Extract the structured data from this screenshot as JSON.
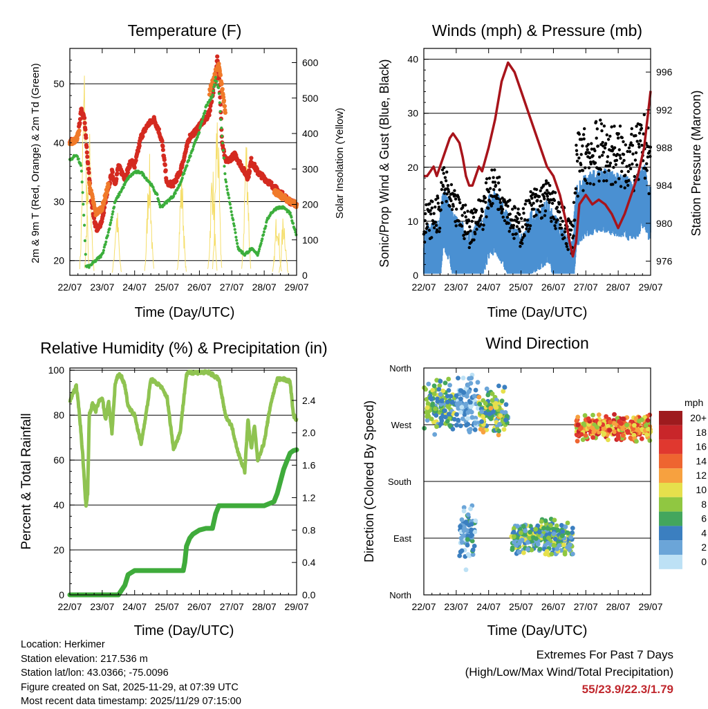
{
  "chart_data": [
    {
      "type": "line",
      "title": "Temperature (F)",
      "xlabel": "Time (Day/UTC)",
      "ylabel": "2m & 9m T (Red, Orange) & 2m Td (Green)",
      "y2label": "Solar Insolation (Yellow)",
      "categories": [
        "22/07",
        "23/07",
        "24/07",
        "25/07",
        "26/07",
        "27/07",
        "28/07",
        "29/07"
      ],
      "ylim": [
        17.5,
        56
      ],
      "yticks": [
        20,
        30,
        40,
        50
      ],
      "y2lim": [
        0,
        640
      ],
      "y2ticks": [
        0,
        100,
        200,
        300,
        400,
        500,
        600
      ],
      "series": [
        {
          "name": "2m T",
          "color": "#d42a20",
          "x": [
            0,
            0.1,
            0.25,
            0.35,
            0.45,
            0.55,
            0.65,
            0.75,
            0.85,
            1.0,
            1.1,
            1.3,
            1.4,
            1.5,
            1.7,
            1.9,
            2.0,
            2.2,
            2.4,
            2.6,
            2.75,
            2.85,
            3.0,
            3.2,
            3.4,
            3.5,
            3.7,
            3.9,
            4.0,
            4.2,
            4.3,
            4.4,
            4.5,
            4.55,
            4.62,
            4.7,
            4.8,
            4.9,
            5.1,
            5.3,
            5.5,
            5.6,
            5.8,
            6.0,
            6.2,
            6.4,
            6.6,
            6.8,
            7.0
          ],
          "y": [
            40.5,
            40,
            41,
            45.5,
            44,
            37,
            31,
            27,
            25,
            27,
            30,
            35,
            33,
            36,
            34,
            37,
            36,
            41,
            43,
            44,
            42,
            40,
            33,
            33,
            35,
            37,
            41,
            42,
            43,
            44,
            45,
            48,
            51,
            55,
            50,
            40,
            37,
            37,
            38,
            36,
            34,
            37,
            35,
            34,
            33,
            32,
            31,
            30,
            29.5
          ]
        },
        {
          "name": "9m T",
          "color": "#f07a2a",
          "x": [
            0,
            0.2,
            0.4,
            0.6,
            0.8,
            1.0,
            1.2,
            1.5,
            2.0,
            2.5,
            3.0,
            3.5,
            4.0,
            4.5,
            4.6,
            5.0,
            5.5,
            6.0,
            6.5,
            7.0
          ],
          "y": [
            40,
            40.5,
            44,
            33,
            28,
            29,
            33,
            34,
            36,
            42,
            32,
            35,
            43,
            52,
            53,
            38,
            35,
            33,
            31,
            29.5
          ]
        },
        {
          "name": "2m Td",
          "color": "#3cae3c",
          "x": [
            0,
            0.2,
            0.35,
            0.45,
            0.5,
            0.6,
            0.8,
            1.0,
            1.2,
            1.4,
            1.6,
            1.8,
            2.0,
            2.2,
            2.5,
            2.7,
            2.8,
            3.0,
            3.2,
            3.4,
            3.6,
            3.8,
            4.0,
            4.2,
            4.4,
            4.5,
            4.6,
            4.7,
            4.8,
            5.0,
            5.2,
            5.4,
            5.6,
            5.8,
            6.0,
            6.1,
            6.2,
            6.4,
            6.6,
            6.8,
            6.9,
            7.0
          ],
          "y": [
            37,
            38,
            36,
            26,
            19,
            19,
            20,
            21,
            25,
            30,
            32,
            34,
            35,
            35,
            33,
            31,
            29,
            30,
            31,
            33,
            36,
            39,
            42,
            46,
            48,
            51,
            49,
            41,
            34,
            28,
            22,
            21,
            22,
            21,
            25,
            27,
            28,
            29,
            29,
            28,
            26,
            24
          ]
        }
      ]
    },
    {
      "type": "scatter",
      "title": "Winds (mph) & Pressure (mb)",
      "xlabel": "Time (Day/UTC)",
      "ylabel": "Sonic/Prop Wind & Gust (Blue, Black)",
      "y2label": "Station Pressure (Maroon)",
      "categories": [
        "22/07",
        "23/07",
        "24/07",
        "25/07",
        "26/07",
        "27/07",
        "28/07",
        "29/07"
      ],
      "ylim": [
        0,
        42
      ],
      "yticks": [
        0,
        10,
        20,
        30,
        40
      ],
      "y2lim": [
        974.5,
        998.5
      ],
      "y2ticks": [
        976,
        980,
        984,
        988,
        992,
        996
      ],
      "series": [
        {
          "name": "Station Pressure",
          "color": "#a8141b",
          "x": [
            0,
            0.1,
            0.2,
            0.3,
            0.4,
            0.5,
            0.6,
            0.7,
            0.8,
            0.9,
            1.0,
            1.1,
            1.2,
            1.3,
            1.4,
            1.5,
            1.6,
            1.7,
            1.8,
            2.0,
            2.2,
            2.4,
            2.6,
            2.8,
            3.0,
            3.2,
            3.4,
            3.6,
            3.8,
            4.0,
            4.2,
            4.4,
            4.5,
            4.6,
            4.7,
            4.8,
            5.0,
            5.2,
            5.4,
            5.6,
            5.8,
            6.0,
            6.2,
            6.4,
            6.6,
            6.8,
            6.9,
            7.0
          ],
          "y": [
            985,
            985,
            985.5,
            986,
            985,
            986,
            987,
            988,
            989,
            989.5,
            989,
            988.5,
            987,
            985,
            984,
            984,
            985,
            986,
            985.5,
            988,
            991,
            995,
            997,
            996,
            994,
            992,
            990,
            988,
            986,
            985,
            983,
            980,
            978,
            976.5,
            978,
            982,
            983,
            982,
            982.5,
            982,
            981,
            979.5,
            981,
            983,
            985,
            988,
            991,
            994
          ]
        },
        {
          "name": "Wind",
          "color": "#4a90d2"
        },
        {
          "name": "Gust",
          "color": "#000000"
        }
      ]
    },
    {
      "type": "line",
      "title": "Relative Humidity (%) & Precipitation (in)",
      "xlabel": "Time (Day/UTC)",
      "ylabel": "Percent & Total Rainfall",
      "categories": [
        "22/07",
        "23/07",
        "24/07",
        "25/07",
        "26/07",
        "27/07",
        "28/07",
        "29/07"
      ],
      "ylim": [
        0,
        101
      ],
      "yticks": [
        0,
        20,
        40,
        60,
        80,
        100
      ],
      "y2lim": [
        0,
        2.8
      ],
      "y2ticks": [
        "0.0",
        "0.4",
        "0.8",
        "1.2",
        "1.6",
        "2.0",
        "2.4"
      ],
      "series": [
        {
          "name": "RH",
          "color": "#8fc351",
          "x": [
            0,
            0.1,
            0.2,
            0.3,
            0.4,
            0.5,
            0.55,
            0.6,
            0.7,
            0.8,
            0.9,
            1.0,
            1.1,
            1.2,
            1.3,
            1.4,
            1.5,
            1.6,
            1.7,
            1.8,
            2.0,
            2.2,
            2.4,
            2.5,
            2.6,
            2.8,
            3.0,
            3.2,
            3.4,
            3.6,
            3.7,
            3.8,
            4.0,
            4.3,
            4.6,
            4.8,
            5.0,
            5.2,
            5.4,
            5.5,
            5.6,
            5.7,
            5.8,
            6.0,
            6.2,
            6.4,
            6.6,
            6.8,
            6.9,
            7.0
          ],
          "y": [
            86,
            90,
            93,
            80,
            62,
            39,
            45,
            80,
            85,
            82,
            86,
            88,
            78,
            86,
            72,
            94,
            98,
            97,
            93,
            84,
            80,
            67,
            85,
            96,
            95,
            93,
            88,
            65,
            72,
            98,
            99,
            99,
            99,
            99,
            96,
            80,
            75,
            63,
            55,
            78,
            65,
            75,
            60,
            68,
            85,
            96,
            96,
            95,
            80,
            78
          ]
        },
        {
          "name": "Total Rainfall",
          "color": "#3fab3b",
          "x": [
            0,
            1.5,
            1.7,
            1.8,
            2.0,
            2.5,
            3.0,
            3.5,
            3.55,
            3.6,
            3.7,
            3.8,
            4.0,
            4.2,
            4.4,
            4.5,
            4.6,
            4.8,
            5.0,
            5.3,
            6.0,
            6.3,
            6.4,
            6.5,
            6.6,
            6.7,
            6.8,
            6.9,
            7.0
          ],
          "y": [
            0,
            0,
            0.12,
            0.25,
            0.3,
            0.3,
            0.3,
            0.3,
            0.4,
            0.6,
            0.7,
            0.75,
            0.8,
            0.82,
            0.82,
            1.0,
            1.1,
            1.1,
            1.1,
            1.1,
            1.1,
            1.15,
            1.25,
            1.4,
            1.55,
            1.65,
            1.75,
            1.78,
            1.79
          ]
        }
      ]
    },
    {
      "type": "scatter",
      "title": "Wind Direction",
      "xlabel": "Time (Day/UTC)",
      "ylabel": "Direction (Colored By Speed)",
      "categories": [
        "22/07",
        "23/07",
        "24/07",
        "25/07",
        "26/07",
        "27/07",
        "28/07",
        "29/07"
      ],
      "yticks": [
        "North",
        "East",
        "South",
        "West",
        "North"
      ],
      "legend_title": "mph",
      "legend_labels": [
        "20+",
        "18",
        "16",
        "14",
        "12",
        "10",
        "8",
        "6",
        "4",
        "2",
        "0"
      ],
      "legend_colors": [
        "#9e1b1e",
        "#c8262a",
        "#e0382f",
        "#ee6530",
        "#f7a13f",
        "#e6e04c",
        "#90c741",
        "#43a65d",
        "#3b7fc0",
        "#6ba5d8",
        "#bde1f5"
      ],
      "legend_position": "right"
    }
  ],
  "info": {
    "location": "Location: Herkimer",
    "elevation": "Station elevation: 217.536 m",
    "latlon": "Station lat/lon: 43.0366; -75.0096",
    "created": "Figure created on Sat, 2025-11-29, at 07:39 UTC",
    "latest": "Most recent data timestamp: 2025/11/29 07:15:00"
  },
  "extremes": {
    "line1": "Extremes For Past 7 Days",
    "line2": "(High/Low/Max Wind/Total Precipitation)",
    "values": "55/23.9/22.3/1.79"
  }
}
